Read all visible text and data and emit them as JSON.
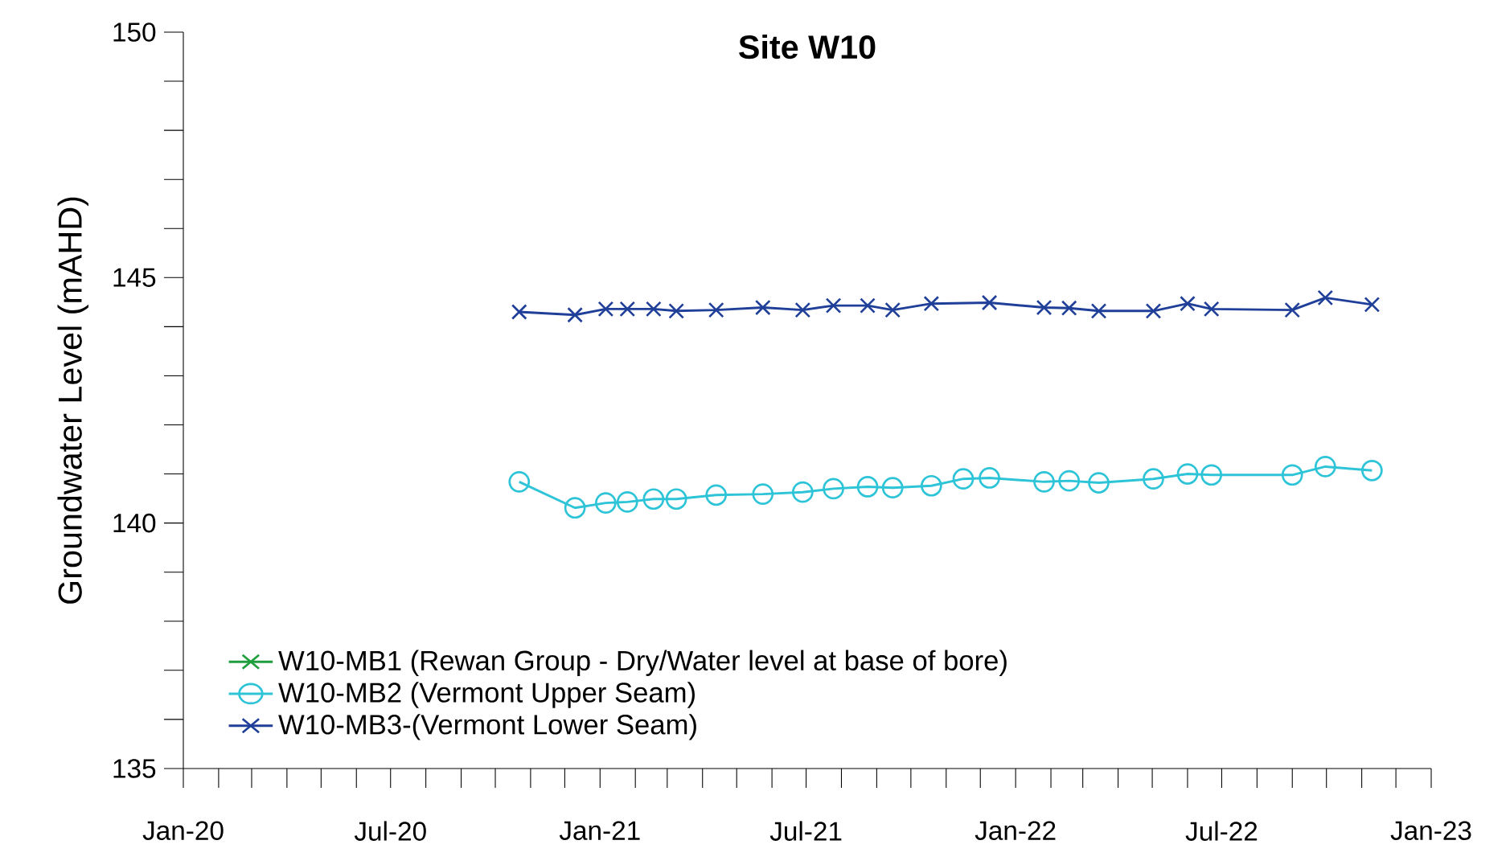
{
  "chart_data": {
    "type": "line",
    "title": "**Site W10**",
    "ylabel": "Groundwater Level (mAHD)",
    "xlim": [
      "2020-01-01",
      "2023-01-01"
    ],
    "xticks": [
      {
        "value": "2020-01-01",
        "label": "Jan-20"
      },
      {
        "value": "2020-02-01",
        "label": null
      },
      {
        "value": "2020-03-01",
        "label": null
      },
      {
        "value": "2020-04-01",
        "label": null
      },
      {
        "value": "2020-05-01",
        "label": null
      },
      {
        "value": "2020-06-01",
        "label": null
      },
      {
        "value": "2020-07-01",
        "label": "Jul-20"
      },
      {
        "value": "2020-08-01",
        "label": null
      },
      {
        "value": "2020-09-01",
        "label": null
      },
      {
        "value": "2020-10-01",
        "label": null
      },
      {
        "value": "2020-11-01",
        "label": null
      },
      {
        "value": "2020-12-01",
        "label": null
      },
      {
        "value": "2021-01-01",
        "label": "Jan-21"
      },
      {
        "value": "2021-02-01",
        "label": null
      },
      {
        "value": "2021-03-01",
        "label": null
      },
      {
        "value": "2021-04-01",
        "label": null
      },
      {
        "value": "2021-05-01",
        "label": null
      },
      {
        "value": "2021-06-01",
        "label": null
      },
      {
        "value": "2021-07-01",
        "label": "Jul-21"
      },
      {
        "value": "2021-08-01",
        "label": null
      },
      {
        "value": "2021-09-01",
        "label": null
      },
      {
        "value": "2021-10-01",
        "label": null
      },
      {
        "value": "2021-11-01",
        "label": null
      },
      {
        "value": "2021-12-01",
        "label": null
      },
      {
        "value": "2022-01-01",
        "label": "Jan-22"
      },
      {
        "value": "2022-02-01",
        "label": null
      },
      {
        "value": "2022-03-01",
        "label": null
      },
      {
        "value": "2022-04-01",
        "label": null
      },
      {
        "value": "2022-05-01",
        "label": null
      },
      {
        "value": "2022-06-01",
        "label": null
      },
      {
        "value": "2022-07-01",
        "label": "Jul-22"
      },
      {
        "value": "2022-08-01",
        "label": null
      },
      {
        "value": "2022-09-01",
        "label": null
      },
      {
        "value": "2022-10-01",
        "label": null
      },
      {
        "value": "2022-11-01",
        "label": null
      },
      {
        "value": "2022-12-01",
        "label": null
      },
      {
        "value": "2023-01-01",
        "label": "Jan-23"
      }
    ],
    "ylim": [
      135,
      150
    ],
    "yticks": [
      135,
      {
        "value": 136,
        "label": null
      },
      {
        "value": 137,
        "label": null
      },
      {
        "value": 138,
        "label": null
      },
      {
        "value": 139,
        "label": null
      },
      140,
      {
        "value": 141,
        "label": null
      },
      {
        "value": 142,
        "label": null
      },
      {
        "value": 143,
        "label": null
      },
      {
        "value": 144,
        "label": null
      },
      145,
      {
        "value": 146,
        "label": null
      },
      {
        "value": 147,
        "label": null
      },
      {
        "value": 148,
        "label": null
      },
      {
        "value": 149,
        "label": null
      },
      150
    ],
    "grid": false,
    "legend": "bottom left",
    "line_style": "solid",
    "series": [
      {
        "name": "W10-MB1 (Rewan Group - Dry/Water level at base of bore)",
        "color": "#1e9e3c",
        "marker": "cross"
      },
      {
        "name": "W10-MB2 (Vermont Upper Seam)",
        "color": "#2ec4d8",
        "marker": "circle",
        "x": [
          "2020-10-22",
          "2020-12-10",
          "2021-01-06",
          "2021-01-25",
          "2021-02-17",
          "2021-03-09",
          "2021-04-13",
          "2021-05-24",
          "2021-06-28",
          "2021-07-25",
          "2021-08-24",
          "2021-09-15",
          "2021-10-19",
          "2021-11-16",
          "2021-12-09",
          "2022-01-26",
          "2022-02-17",
          "2022-03-15",
          "2022-05-02",
          "2022-06-01",
          "2022-06-22",
          "2022-09-01",
          "2022-09-30",
          "2022-11-10"
        ],
        "values": [
          140.84,
          140.31,
          140.41,
          140.43,
          140.49,
          140.49,
          140.57,
          140.59,
          140.63,
          140.7,
          140.74,
          140.72,
          140.76,
          140.9,
          140.92,
          140.84,
          140.86,
          140.82,
          140.9,
          141.0,
          140.98,
          140.98,
          141.15,
          141.07
        ]
      },
      {
        "name": "W10-MB3-(Vermont Lower Seam)",
        "color": "#1f3f99",
        "marker": "cross",
        "x": [
          "2020-10-22",
          "2020-12-10",
          "2021-01-06",
          "2021-01-25",
          "2021-02-17",
          "2021-03-09",
          "2021-04-13",
          "2021-05-24",
          "2021-06-28",
          "2021-07-25",
          "2021-08-24",
          "2021-09-15",
          "2021-10-19",
          "2021-12-09",
          "2022-01-26",
          "2022-02-17",
          "2022-03-15",
          "2022-05-02",
          "2022-06-01",
          "2022-06-22",
          "2022-09-01",
          "2022-09-30",
          "2022-11-10"
        ],
        "values": [
          144.3,
          144.24,
          144.36,
          144.36,
          144.36,
          144.32,
          144.34,
          144.39,
          144.34,
          144.43,
          144.43,
          144.34,
          144.47,
          144.49,
          144.39,
          144.38,
          144.32,
          144.32,
          144.47,
          144.36,
          144.34,
          144.59,
          144.45
        ]
      }
    ]
  }
}
